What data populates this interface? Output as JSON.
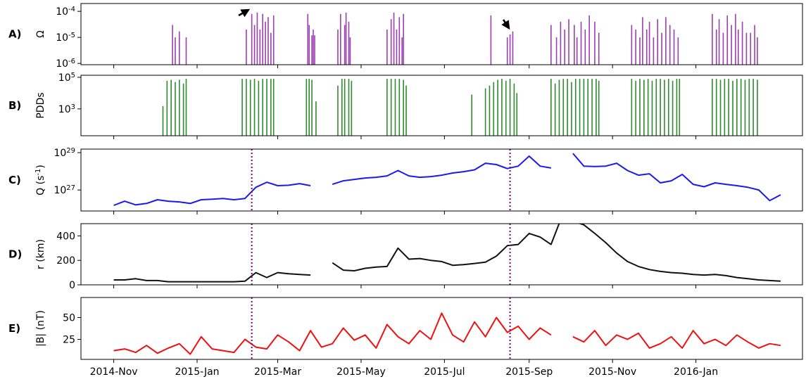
{
  "chart_data": [
    {
      "type": "bar",
      "label": "A)",
      "ylabel": "Ω",
      "color": "#9b3fae",
      "log": true,
      "xlim": [
        -24,
        504
      ],
      "xticks": [
        0,
        61,
        120,
        181,
        242,
        304,
        365,
        426
      ],
      "ylim": [
        8.9e-07,
        0.0002
      ],
      "yticks": [
        {
          "value": 1e-06,
          "label": "10^{-6}"
        },
        {
          "value": 1e-05,
          "label": "10^{-5}"
        },
        {
          "value": 0.0001,
          "label": "10^{-4}"
        }
      ],
      "x": [
        43,
        45,
        48,
        53,
        97,
        101,
        103,
        105,
        107,
        109,
        111,
        113,
        115,
        117,
        142,
        143,
        145,
        146,
        147,
        164,
        166,
        169,
        170,
        172,
        173,
        200,
        203,
        205,
        207,
        209,
        211,
        212,
        276,
        288,
        290,
        292,
        320,
        324,
        327,
        330,
        333,
        337,
        339,
        342,
        345,
        348,
        352,
        355,
        379,
        382,
        385,
        387,
        390,
        392,
        395,
        398,
        401,
        404,
        407,
        410,
        413,
        438,
        441,
        443,
        446,
        449,
        452,
        455,
        457,
        460,
        463,
        466,
        469,
        471
      ],
      "values": [
        3e-05,
        1e-05,
        1.7e-05,
        1e-05,
        2e-05,
        8e-05,
        3e-05,
        9e-05,
        2e-05,
        8e-05,
        4e-05,
        6e-05,
        1.5e-05,
        7e-05,
        8e-05,
        3e-05,
        1.2e-05,
        2e-05,
        1.2e-05,
        2e-05,
        8e-05,
        3e-05,
        9e-05,
        4e-05,
        1e-05,
        2e-05,
        5e-05,
        9e-05,
        2e-05,
        6e-05,
        1e-05,
        8e-05,
        7e-05,
        1e-05,
        1.3e-05,
        1.7e-05,
        3e-05,
        1e-05,
        4e-05,
        2e-05,
        5e-05,
        3e-05,
        1e-05,
        4e-05,
        2e-05,
        7e-05,
        4e-05,
        1.5e-05,
        3e-05,
        2e-05,
        1e-05,
        6e-05,
        2e-05,
        4e-05,
        1e-05,
        5e-05,
        1.5e-05,
        6e-05,
        3e-05,
        2e-05,
        1e-05,
        8e-05,
        2e-05,
        5e-05,
        1.5e-05,
        7e-05,
        3e-05,
        8e-05,
        2e-05,
        4e-05,
        1.5e-05,
        1.5e-05,
        3e-05,
        1e-05
      ]
    },
    {
      "type": "bar",
      "label": "B)",
      "ylabel": "PDDs",
      "color": "#2e8b2e",
      "log": true,
      "xlim": [
        -24,
        504
      ],
      "xticks": [
        0,
        61,
        120,
        181,
        242,
        304,
        365,
        426
      ],
      "ylim": [
        20,
        135000
      ],
      "yticks": [
        {
          "value": 1000,
          "label": "10^{3}"
        },
        {
          "value": 100000,
          "label": "10^{5}"
        }
      ],
      "x": [
        36,
        39,
        42,
        45,
        48,
        51,
        53,
        94,
        97,
        100,
        103,
        106,
        109,
        112,
        115,
        117,
        141,
        143,
        145,
        148,
        164,
        167,
        169,
        172,
        174,
        200,
        203,
        206,
        209,
        212,
        214,
        262,
        272,
        275,
        278,
        281,
        284,
        287,
        290,
        293,
        295,
        320,
        323,
        326,
        329,
        332,
        335,
        338,
        341,
        344,
        347,
        350,
        353,
        355,
        379,
        382,
        385,
        388,
        391,
        394,
        397,
        400,
        403,
        406,
        409,
        412,
        414,
        438,
        441,
        444,
        447,
        450,
        453,
        456,
        459,
        462,
        465,
        468,
        471
      ],
      "values": [
        1500,
        60000,
        70000,
        50000,
        70000,
        40000,
        80000,
        80000,
        80000,
        70000,
        80000,
        60000,
        80000,
        80000,
        80000,
        80000,
        80000,
        80000,
        70000,
        3000,
        30000,
        80000,
        80000,
        80000,
        60000,
        80000,
        80000,
        80000,
        80000,
        70000,
        30000,
        8000,
        20000,
        30000,
        50000,
        70000,
        80000,
        60000,
        80000,
        40000,
        10000,
        80000,
        40000,
        70000,
        80000,
        80000,
        50000,
        80000,
        80000,
        80000,
        80000,
        80000,
        80000,
        60000,
        80000,
        60000,
        80000,
        70000,
        80000,
        60000,
        80000,
        80000,
        70000,
        80000,
        60000,
        80000,
        80000,
        80000,
        80000,
        70000,
        80000,
        80000,
        60000,
        80000,
        80000,
        70000,
        80000,
        80000,
        70000
      ]
    },
    {
      "type": "line",
      "label": "C)",
      "ylabel": "Q (s^{-1})",
      "color": "#1a1aee",
      "log": true,
      "xlim": [
        -24,
        504
      ],
      "xticks": [
        0,
        61,
        120,
        181,
        242,
        304,
        365,
        426
      ],
      "ylim": [
        7.5e+25,
        1.55e+29
      ],
      "yticks": [
        {
          "value": 1e+27,
          "label": "10^{27}"
        },
        {
          "value": 1e+29,
          "label": "10^{29}"
        }
      ],
      "vlines": [
        101,
        290
      ],
      "x": [
        0,
        8,
        16,
        24,
        32,
        40,
        48,
        56,
        64,
        72,
        80,
        88,
        96,
        104,
        112,
        120,
        128,
        136,
        144,
        152,
        160,
        168,
        176,
        184,
        192,
        200,
        208,
        216,
        224,
        232,
        240,
        248,
        256,
        264,
        272,
        280,
        288,
        296,
        304,
        312,
        320,
        328,
        336,
        344,
        352,
        360,
        368,
        376,
        384,
        392,
        400,
        408,
        416,
        424,
        432,
        440,
        448,
        456,
        464,
        472,
        480,
        488
      ],
      "values": [
        1.5e+26,
        2.5e+26,
        1.6e+26,
        1.9e+26,
        3e+26,
        2.5e+26,
        2.3e+26,
        1.9e+26,
        3e+26,
        3.2e+26,
        3.5e+26,
        3e+26,
        3.5e+26,
        1.4e+27,
        2.6e+27,
        1.7e+27,
        1.8e+27,
        2.2e+27,
        1.7e+27,
        null,
        2e+27,
        3.1e+27,
        3.7e+27,
        4.4e+27,
        4.8e+27,
        5.7e+27,
        1.1e+28,
        5.7e+27,
        4.8e+27,
        5.2e+27,
        6.2e+27,
        8.1e+27,
        9.6e+27,
        1.2e+28,
        2.7e+28,
        2.3e+28,
        1.4e+28,
        1.9e+28,
        6.5e+28,
        1.9e+28,
        1.5e+28,
        null,
        9.1e+28,
        1.9e+28,
        1.8e+28,
        1.9e+28,
        2.7e+28,
        1.1e+28,
        6.2e+27,
        7.4e+27,
        2.4e+27,
        3.1e+27,
        6.8e+27,
        2e+27,
        1.5e+27,
        2.4e+27,
        2e+27,
        1.7e+27,
        1.4e+27,
        1e+27,
        2.7e+26,
        5.5e+26
      ]
    },
    {
      "type": "line",
      "label": "D)",
      "ylabel": "r (km)",
      "color": "#111111",
      "log": false,
      "xlim": [
        -24,
        504
      ],
      "xticks": [
        0,
        61,
        120,
        181,
        242,
        304,
        365,
        426
      ],
      "ylim": [
        0,
        500
      ],
      "yticks": [
        0,
        200,
        400
      ],
      "vlines": [
        101,
        290
      ],
      "x": [
        0,
        8,
        16,
        24,
        32,
        40,
        48,
        56,
        64,
        72,
        80,
        88,
        96,
        104,
        112,
        120,
        128,
        136,
        144,
        152,
        160,
        168,
        176,
        184,
        192,
        200,
        208,
        216,
        224,
        232,
        240,
        248,
        256,
        264,
        272,
        280,
        288,
        296,
        304,
        312,
        320,
        328,
        336,
        344,
        352,
        360,
        368,
        376,
        384,
        392,
        400,
        408,
        416,
        424,
        432,
        440,
        448,
        456,
        464,
        472,
        480,
        488
      ],
      "values": [
        40,
        40,
        50,
        35,
        35,
        25,
        25,
        25,
        25,
        25,
        25,
        25,
        30,
        100,
        60,
        100,
        90,
        85,
        80,
        null,
        180,
        120,
        115,
        135,
        145,
        150,
        300,
        210,
        215,
        200,
        190,
        160,
        165,
        175,
        185,
        235,
        320,
        330,
        420,
        390,
        330,
        560,
        520,
        490,
        420,
        345,
        260,
        190,
        150,
        125,
        110,
        100,
        95,
        85,
        80,
        85,
        75,
        60,
        50,
        40,
        35,
        30
      ]
    },
    {
      "type": "line",
      "label": "E)",
      "ylabel": "|B| (nT)",
      "color": "#ee1111",
      "log": false,
      "xlim": [
        -24,
        504
      ],
      "xticks": [
        {
          "value": 0,
          "label": "2014-Nov"
        },
        {
          "value": 61,
          "label": "2015-Jan"
        },
        {
          "value": 120,
          "label": "2015-Mar"
        },
        {
          "value": 181,
          "label": "2015-May"
        },
        {
          "value": 242,
          "label": "2015-Jul"
        },
        {
          "value": 304,
          "label": "2015-Sep"
        },
        {
          "value": 365,
          "label": "2015-Nov"
        },
        {
          "value": 426,
          "label": "2016-Jan"
        }
      ],
      "ylim": [
        2,
        73
      ],
      "yticks": [
        25,
        50
      ],
      "vlines": [
        101,
        290
      ],
      "x": [
        0,
        8,
        16,
        24,
        32,
        40,
        48,
        56,
        64,
        72,
        80,
        88,
        96,
        104,
        112,
        120,
        128,
        136,
        144,
        152,
        160,
        168,
        176,
        184,
        192,
        200,
        208,
        216,
        224,
        232,
        240,
        248,
        256,
        264,
        272,
        280,
        288,
        296,
        304,
        312,
        320,
        328,
        336,
        344,
        352,
        360,
        368,
        376,
        384,
        392,
        400,
        408,
        416,
        424,
        432,
        440,
        448,
        456,
        464,
        472,
        480,
        488
      ],
      "values": [
        12,
        14,
        10,
        18,
        9,
        15,
        20,
        8,
        28,
        14,
        12,
        10,
        25,
        16,
        14,
        30,
        22,
        12,
        35,
        16,
        20,
        38,
        24,
        30,
        15,
        42,
        28,
        20,
        35,
        25,
        55,
        30,
        22,
        45,
        28,
        50,
        33,
        40,
        25,
        38,
        30,
        null,
        28,
        22,
        35,
        18,
        30,
        25,
        32,
        15,
        20,
        28,
        15,
        35,
        20,
        25,
        18,
        30,
        22,
        15,
        20,
        18
      ]
    }
  ]
}
